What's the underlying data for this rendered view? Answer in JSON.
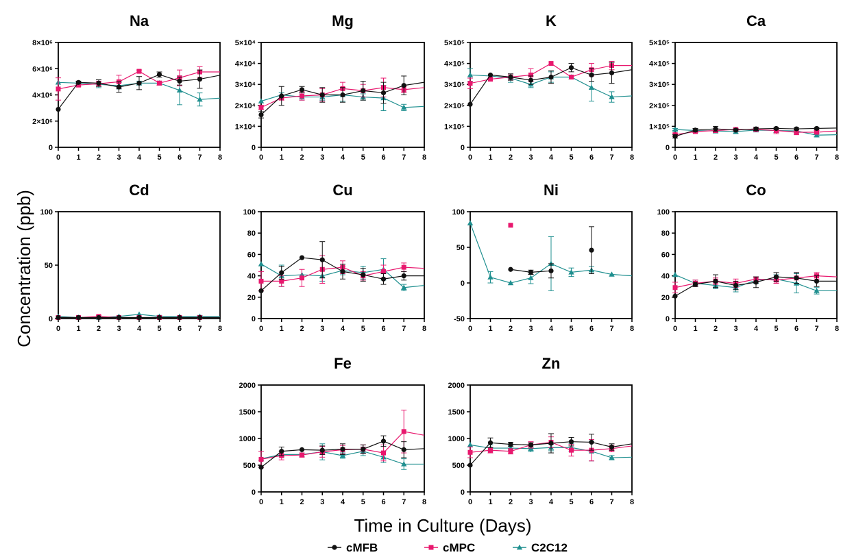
{
  "figure": {
    "ylabel": "Concentration (ppb)",
    "xlabel": "Time in Culture (Days)",
    "legend": [
      {
        "name": "cMFB",
        "color": "#111111",
        "marker": "circle"
      },
      {
        "name": "cMPC",
        "color": "#e8186e",
        "marker": "square"
      },
      {
        "name": "C2C12",
        "color": "#1f8f8f",
        "marker": "triangle"
      }
    ]
  },
  "chart_data": [
    {
      "type": "line",
      "title": "Na",
      "x": [
        0,
        1,
        2,
        3,
        4,
        5,
        6,
        7
      ],
      "xlim": [
        0,
        8
      ],
      "ylim": [
        0,
        8000000
      ],
      "yticks": [
        "0",
        "2×10⁶",
        "4×10⁶",
        "6×10⁶",
        "8×10⁶"
      ],
      "ytick_values": [
        0,
        2000000,
        4000000,
        6000000,
        8000000
      ],
      "series": [
        {
          "name": "cMFB",
          "values": [
            2900000,
            4950000,
            4900000,
            4600000,
            4900000,
            5550000,
            5050000,
            5200000
          ],
          "errors": [
            0,
            100000,
            250000,
            400000,
            500000,
            200000,
            300000,
            700000
          ],
          "extend_to": 5500000
        },
        {
          "name": "cMPC",
          "values": [
            4450000,
            4750000,
            4850000,
            5000000,
            5800000,
            4900000,
            5300000,
            5750000
          ],
          "errors": [
            850000,
            100000,
            200000,
            500000,
            100000,
            150000,
            600000,
            400000
          ],
          "extend_to": 5750000
        },
        {
          "name": "C2C12",
          "values": [
            4950000,
            4900000,
            4800000,
            4700000,
            4900000,
            4900000,
            4350000,
            3650000
          ],
          "errors": [
            0,
            100000,
            250000,
            250000,
            150000,
            150000,
            1100000,
            500000
          ],
          "extend_to": 3750000
        }
      ]
    },
    {
      "type": "line",
      "title": "Mg",
      "x": [
        0,
        1,
        2,
        3,
        4,
        5,
        6,
        7
      ],
      "xlim": [
        0,
        8
      ],
      "ylim": [
        0,
        50000
      ],
      "yticks": [
        "0",
        "1×10⁴",
        "2×10⁴",
        "3×10⁴",
        "4×10⁴",
        "5×10⁴"
      ],
      "ytick_values": [
        0,
        10000,
        20000,
        30000,
        40000,
        50000
      ],
      "series": [
        {
          "name": "cMFB",
          "values": [
            15500,
            24500,
            27500,
            25000,
            25000,
            27000,
            26000,
            29500
          ],
          "errors": [
            1500,
            4500,
            1500,
            3500,
            3500,
            4500,
            5000,
            4500
          ],
          "extend_to": 31000
        },
        {
          "name": "cMPC",
          "values": [
            19000,
            23500,
            24500,
            25000,
            28000,
            27000,
            28500,
            27500
          ],
          "errors": [
            1000,
            1000,
            2000,
            3000,
            3000,
            3000,
            4500,
            1500
          ],
          "extend_to": 28500
        },
        {
          "name": "C2C12",
          "values": [
            22000,
            25000,
            24000,
            24000,
            25000,
            24000,
            23500,
            19000
          ],
          "errors": [
            0,
            1000,
            1500,
            1500,
            3000,
            1500,
            6000,
            1500
          ],
          "extend_to": 19500
        }
      ]
    },
    {
      "type": "line",
      "title": "K",
      "x": [
        0,
        1,
        2,
        3,
        4,
        5,
        6,
        7
      ],
      "xlim": [
        0,
        8
      ],
      "ylim": [
        0,
        500000
      ],
      "yticks": [
        "0",
        "1×10⁵",
        "2×10⁵",
        "3×10⁵",
        "4×10⁵",
        "5×10⁵"
      ],
      "ytick_values": [
        0,
        100000,
        200000,
        300000,
        400000,
        500000
      ],
      "series": [
        {
          "name": "cMFB",
          "values": [
            205000,
            345000,
            335000,
            320000,
            335000,
            380000,
            345000,
            355000
          ],
          "errors": [
            0,
            0,
            15000,
            20000,
            30000,
            20000,
            30000,
            50000
          ],
          "extend_to": 370000
        },
        {
          "name": "cMPC",
          "values": [
            305000,
            325000,
            335000,
            345000,
            400000,
            335000,
            370000,
            390000
          ],
          "errors": [
            25000,
            0,
            15000,
            30000,
            0,
            0,
            30000,
            20000
          ],
          "extend_to": 390000
        },
        {
          "name": "C2C12",
          "values": [
            345000,
            340000,
            330000,
            300000,
            335000,
            335000,
            285000,
            240000
          ],
          "errors": [
            30000,
            0,
            20000,
            15000,
            25000,
            0,
            65000,
            25000
          ],
          "extend_to": 245000
        }
      ]
    },
    {
      "type": "line",
      "title": "Ca",
      "x": [
        0,
        1,
        2,
        3,
        4,
        5,
        6,
        7
      ],
      "xlim": [
        0,
        8
      ],
      "ylim": [
        0,
        500000
      ],
      "yticks": [
        "0",
        "1×10⁵",
        "2×10⁵",
        "3×10⁵",
        "4×10⁵",
        "5×10⁵"
      ],
      "ytick_values": [
        0,
        100000,
        200000,
        300000,
        400000,
        500000
      ],
      "series": [
        {
          "name": "cMFB",
          "values": [
            52000,
            82000,
            88000,
            82000,
            88000,
            90000,
            88000,
            90000
          ],
          "errors": [
            8000,
            8000,
            12000,
            6000,
            8000,
            5000,
            5000,
            5000
          ],
          "extend_to": 92000
        },
        {
          "name": "cMPC",
          "values": [
            60000,
            75000,
            80000,
            85000,
            85000,
            80000,
            72000,
            72000
          ],
          "errors": [
            8000,
            6000,
            8000,
            6000,
            6000,
            15000,
            12000,
            8000
          ],
          "extend_to": 78000
        },
        {
          "name": "C2C12",
          "values": [
            85000,
            80000,
            78000,
            75000,
            82000,
            80000,
            78000,
            58000
          ],
          "errors": [
            5000,
            6000,
            10000,
            10000,
            6000,
            10000,
            10000,
            8000
          ],
          "extend_to": 60000
        }
      ]
    },
    {
      "type": "line",
      "title": "Cd",
      "x": [
        0,
        1,
        2,
        3,
        4,
        5,
        6,
        7
      ],
      "xlim": [
        0,
        8
      ],
      "ylim": [
        0,
        100
      ],
      "yticks": [
        "0",
        "50",
        "100"
      ],
      "ytick_values": [
        0,
        50,
        100
      ],
      "series": [
        {
          "name": "cMFB",
          "values": [
            1,
            1,
            1,
            1,
            1,
            1,
            1,
            1
          ],
          "errors": [
            0,
            0,
            0,
            0,
            0,
            0,
            0,
            0
          ],
          "extend_to": 1
        },
        {
          "name": "cMPC",
          "values": [
            1,
            1,
            2,
            1,
            1,
            1,
            1,
            1
          ],
          "errors": [
            0,
            0,
            1,
            0,
            0,
            1,
            0,
            0
          ],
          "extend_to": 1
        },
        {
          "name": "C2C12",
          "values": [
            2,
            1,
            1,
            2,
            4,
            2,
            2,
            2
          ],
          "errors": [
            0,
            0,
            0,
            0,
            0,
            1,
            0,
            1
          ],
          "extend_to": 2
        }
      ]
    },
    {
      "type": "line",
      "title": "Cu",
      "x": [
        0,
        1,
        2,
        3,
        4,
        5,
        6,
        7
      ],
      "xlim": [
        0,
        8
      ],
      "ylim": [
        0,
        100
      ],
      "yticks": [
        "0",
        "20",
        "40",
        "60",
        "80",
        "100"
      ],
      "ytick_values": [
        0,
        20,
        40,
        60,
        80,
        100
      ],
      "series": [
        {
          "name": "cMFB",
          "values": [
            26,
            43,
            57,
            55,
            44,
            41,
            37,
            40
          ],
          "errors": [
            0,
            6,
            0,
            17,
            7,
            6,
            5,
            4
          ],
          "extend_to": 40
        },
        {
          "name": "cMPC",
          "values": [
            35,
            35,
            38,
            46,
            48,
            40,
            44,
            48
          ],
          "errors": [
            9,
            5,
            8,
            13,
            6,
            4,
            6,
            4
          ],
          "extend_to": 47
        },
        {
          "name": "C2C12",
          "values": [
            51,
            40,
            41,
            40,
            45,
            43,
            46,
            29
          ],
          "errors": [
            0,
            10,
            0,
            5,
            4,
            6,
            10,
            3
          ],
          "extend_to": 31
        }
      ]
    },
    {
      "type": "line",
      "title": "Ni",
      "x": [
        0,
        1,
        2,
        3,
        4,
        5,
        6,
        7
      ],
      "xlim": [
        0,
        8
      ],
      "ylim": [
        -50,
        100
      ],
      "yticks": [
        "-50",
        "0",
        "50",
        "100"
      ],
      "ytick_values": [
        -50,
        0,
        50,
        100
      ],
      "series": [
        {
          "name": "cMFB",
          "values": [
            null,
            null,
            19,
            15,
            17,
            null,
            46,
            null
          ],
          "errors": [
            0,
            0,
            0,
            3,
            10,
            0,
            33,
            0
          ],
          "extend_to": null
        },
        {
          "name": "cMPC",
          "values": [
            null,
            null,
            81,
            null,
            null,
            null,
            null,
            null
          ],
          "errors": [
            0,
            0,
            0,
            0,
            0,
            0,
            0,
            0
          ],
          "extend_to": null
        },
        {
          "name": "C2C12",
          "values": [
            84,
            8,
            0,
            7,
            27,
            15,
            18,
            12
          ],
          "errors": [
            0,
            8,
            0,
            8,
            38,
            6,
            5,
            0
          ],
          "extend_to": 10
        }
      ]
    },
    {
      "type": "line",
      "title": "Co",
      "x": [
        0,
        1,
        2,
        3,
        4,
        5,
        6,
        7
      ],
      "xlim": [
        0,
        8
      ],
      "ylim": [
        0,
        100
      ],
      "yticks": [
        "0",
        "20",
        "40",
        "60",
        "80",
        "100"
      ],
      "ytick_values": [
        0,
        20,
        40,
        60,
        80,
        100
      ],
      "series": [
        {
          "name": "cMFB",
          "values": [
            21,
            32,
            35,
            31,
            34,
            39,
            38,
            35
          ],
          "errors": [
            0,
            2,
            6,
            4,
            5,
            4,
            5,
            5
          ],
          "extend_to": 35
        },
        {
          "name": "cMPC",
          "values": [
            29,
            33,
            35,
            33,
            37,
            36,
            38,
            40
          ],
          "errors": [
            5,
            3,
            3,
            4,
            2,
            3,
            5,
            3
          ],
          "extend_to": 39
        },
        {
          "name": "C2C12",
          "values": [
            41,
            33,
            31,
            29,
            36,
            37,
            33,
            26
          ],
          "errors": [
            0,
            3,
            3,
            4,
            3,
            4,
            9,
            3
          ],
          "extend_to": 26
        }
      ]
    },
    {
      "type": "line",
      "title": "Fe",
      "x": [
        0,
        1,
        2,
        3,
        4,
        5,
        6,
        7
      ],
      "xlim": [
        0,
        8
      ],
      "ylim": [
        0,
        2000
      ],
      "yticks": [
        "0",
        "500",
        "1000",
        "1500",
        "2000"
      ],
      "ytick_values": [
        0,
        500,
        1000,
        1500,
        2000
      ],
      "series": [
        {
          "name": "cMFB",
          "values": [
            460,
            760,
            790,
            780,
            800,
            800,
            950,
            790
          ],
          "errors": [
            0,
            80,
            0,
            80,
            100,
            80,
            100,
            150
          ],
          "extend_to": 810
        },
        {
          "name": "cMPC",
          "values": [
            610,
            680,
            690,
            750,
            790,
            800,
            730,
            1130
          ],
          "errors": [
            150,
            80,
            40,
            100,
            80,
            80,
            150,
            400
          ],
          "extend_to": 1060
        },
        {
          "name": "C2C12",
          "values": [
            620,
            700,
            700,
            750,
            680,
            760,
            650,
            520
          ],
          "errors": [
            0,
            60,
            0,
            150,
            50,
            80,
            100,
            100
          ],
          "extend_to": 520
        }
      ]
    },
    {
      "type": "line",
      "title": "Zn",
      "x": [
        0,
        1,
        2,
        3,
        4,
        5,
        6,
        7
      ],
      "xlim": [
        0,
        8
      ],
      "ylim": [
        0,
        2000
      ],
      "yticks": [
        "0",
        "500",
        "1000",
        "1500",
        "2000"
      ],
      "ytick_values": [
        0,
        500,
        1000,
        1500,
        2000
      ],
      "series": [
        {
          "name": "cMFB",
          "values": [
            500,
            920,
            890,
            880,
            910,
            940,
            930,
            840
          ],
          "errors": [
            0,
            90,
            40,
            40,
            180,
            80,
            150,
            60
          ],
          "extend_to": 900
        },
        {
          "name": "cMPC",
          "values": [
            740,
            780,
            760,
            880,
            930,
            780,
            780,
            810
          ],
          "errors": [
            100,
            50,
            50,
            60,
            100,
            110,
            200,
            60
          ],
          "extend_to": 860
        },
        {
          "name": "C2C12",
          "values": [
            880,
            820,
            820,
            810,
            830,
            830,
            760,
            640
          ],
          "errors": [
            0,
            60,
            50,
            60,
            60,
            70,
            180,
            40
          ],
          "extend_to": 650
        }
      ]
    }
  ]
}
